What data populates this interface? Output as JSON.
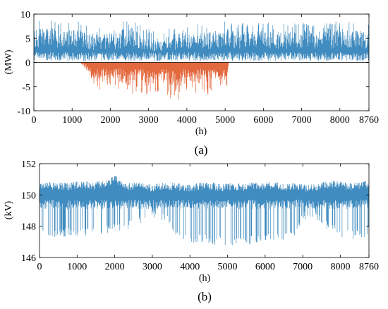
{
  "chart_data": [
    {
      "type": "line",
      "panel_label": "(a)",
      "xlabel": "(h)",
      "ylabel": "(MW)",
      "xlim": [
        0,
        8760
      ],
      "ylim": [
        -10,
        10
      ],
      "x_ticks": [
        0,
        1000,
        2000,
        3000,
        4000,
        5000,
        6000,
        7000,
        8000,
        8760
      ],
      "y_ticks": [
        -10,
        -5,
        0,
        5,
        10
      ],
      "grid": false,
      "colors": {
        "positive": "#1f77b4",
        "negative": "#e0592a",
        "zero_line": "#000000"
      },
      "envelope_x": [
        0,
        200,
        400,
        600,
        800,
        1000,
        1200,
        1400,
        1500,
        1700,
        1900,
        2100,
        2300,
        2500,
        2700,
        2900,
        3100,
        3300,
        3500,
        3700,
        3900,
        4100,
        4300,
        4500,
        4700,
        4900,
        5050,
        5100,
        5300,
        5500,
        5700,
        5900,
        6100,
        6300,
        6500,
        6700,
        6900,
        7100,
        7300,
        7500,
        7700,
        7900,
        8100,
        8300,
        8500,
        8760
      ],
      "upper_values": [
        8.5,
        9.0,
        9.2,
        8.8,
        8.5,
        9.0,
        8.6,
        8.5,
        6.8,
        7.5,
        8.0,
        7.5,
        8.5,
        10.2,
        8.0,
        7.5,
        6.5,
        6.0,
        7.0,
        7.5,
        8.5,
        7.5,
        8.0,
        7.5,
        8.5,
        7.5,
        10.5,
        8.5,
        8.0,
        8.5,
        8.0,
        8.2,
        8.5,
        8.0,
        8.0,
        8.3,
        8.2,
        8.5,
        8.0,
        8.5,
        8.0,
        8.5,
        8.8,
        8.5,
        8.5,
        8.0
      ],
      "lower_values": [
        0,
        0,
        0,
        0,
        0,
        0,
        0,
        -2.0,
        -5.0,
        -6.0,
        -5.5,
        -5.0,
        -6.0,
        -7.0,
        -6.0,
        -7.0,
        -6.5,
        -6.0,
        -7.0,
        -8.5,
        -6.5,
        -6.0,
        -6.5,
        -7.0,
        -6.0,
        -5.5,
        -5.0,
        0,
        0,
        0,
        0,
        0,
        0,
        0,
        0,
        0,
        0,
        0,
        0,
        0,
        0,
        0,
        0,
        0,
        0,
        0
      ]
    },
    {
      "type": "line",
      "panel_label": "(b)",
      "xlabel": "(h)",
      "ylabel": "(kV)",
      "xlim": [
        0,
        8760
      ],
      "ylim": [
        146,
        152
      ],
      "x_ticks": [
        0,
        1000,
        2000,
        3000,
        4000,
        5000,
        6000,
        7000,
        8000,
        8760
      ],
      "y_ticks": [
        146,
        148,
        150,
        152
      ],
      "grid": false,
      "colors": {
        "series": "#1f77b4"
      },
      "envelope_x": [
        0,
        200,
        400,
        600,
        800,
        1000,
        1200,
        1400,
        1600,
        1800,
        2000,
        2200,
        2400,
        2600,
        2800,
        3000,
        3200,
        3400,
        3600,
        3800,
        4000,
        4200,
        4400,
        4600,
        4800,
        5000,
        5200,
        5400,
        5600,
        5800,
        6000,
        6200,
        6400,
        6600,
        6800,
        7000,
        7200,
        7400,
        7600,
        7800,
        8000,
        8200,
        8400,
        8600,
        8760
      ],
      "upper_values": [
        150.8,
        150.9,
        150.8,
        150.8,
        150.8,
        150.9,
        150.9,
        150.8,
        150.9,
        151.0,
        151.3,
        150.9,
        150.8,
        150.8,
        150.8,
        150.7,
        150.8,
        150.8,
        150.8,
        150.7,
        150.7,
        150.8,
        150.8,
        150.8,
        150.7,
        150.8,
        150.8,
        150.7,
        150.8,
        150.8,
        150.8,
        150.9,
        150.8,
        150.7,
        150.8,
        150.7,
        150.7,
        150.8,
        150.9,
        150.9,
        150.9,
        150.8,
        150.8,
        150.9,
        150.9
      ],
      "lower_values": [
        147.8,
        147.2,
        147.2,
        147.3,
        147.4,
        147.4,
        147.4,
        147.4,
        147.3,
        147.5,
        147.6,
        147.6,
        147.8,
        148.1,
        148.3,
        148.5,
        148.4,
        148.1,
        147.5,
        147.2,
        146.9,
        146.9,
        146.9,
        146.8,
        146.8,
        146.7,
        146.8,
        146.7,
        146.8,
        146.8,
        146.9,
        146.9,
        146.9,
        147.0,
        147.1,
        148.4,
        148.5,
        148.2,
        147.9,
        147.6,
        147.3,
        147.2,
        147.2,
        147.0,
        147.4
      ]
    }
  ]
}
